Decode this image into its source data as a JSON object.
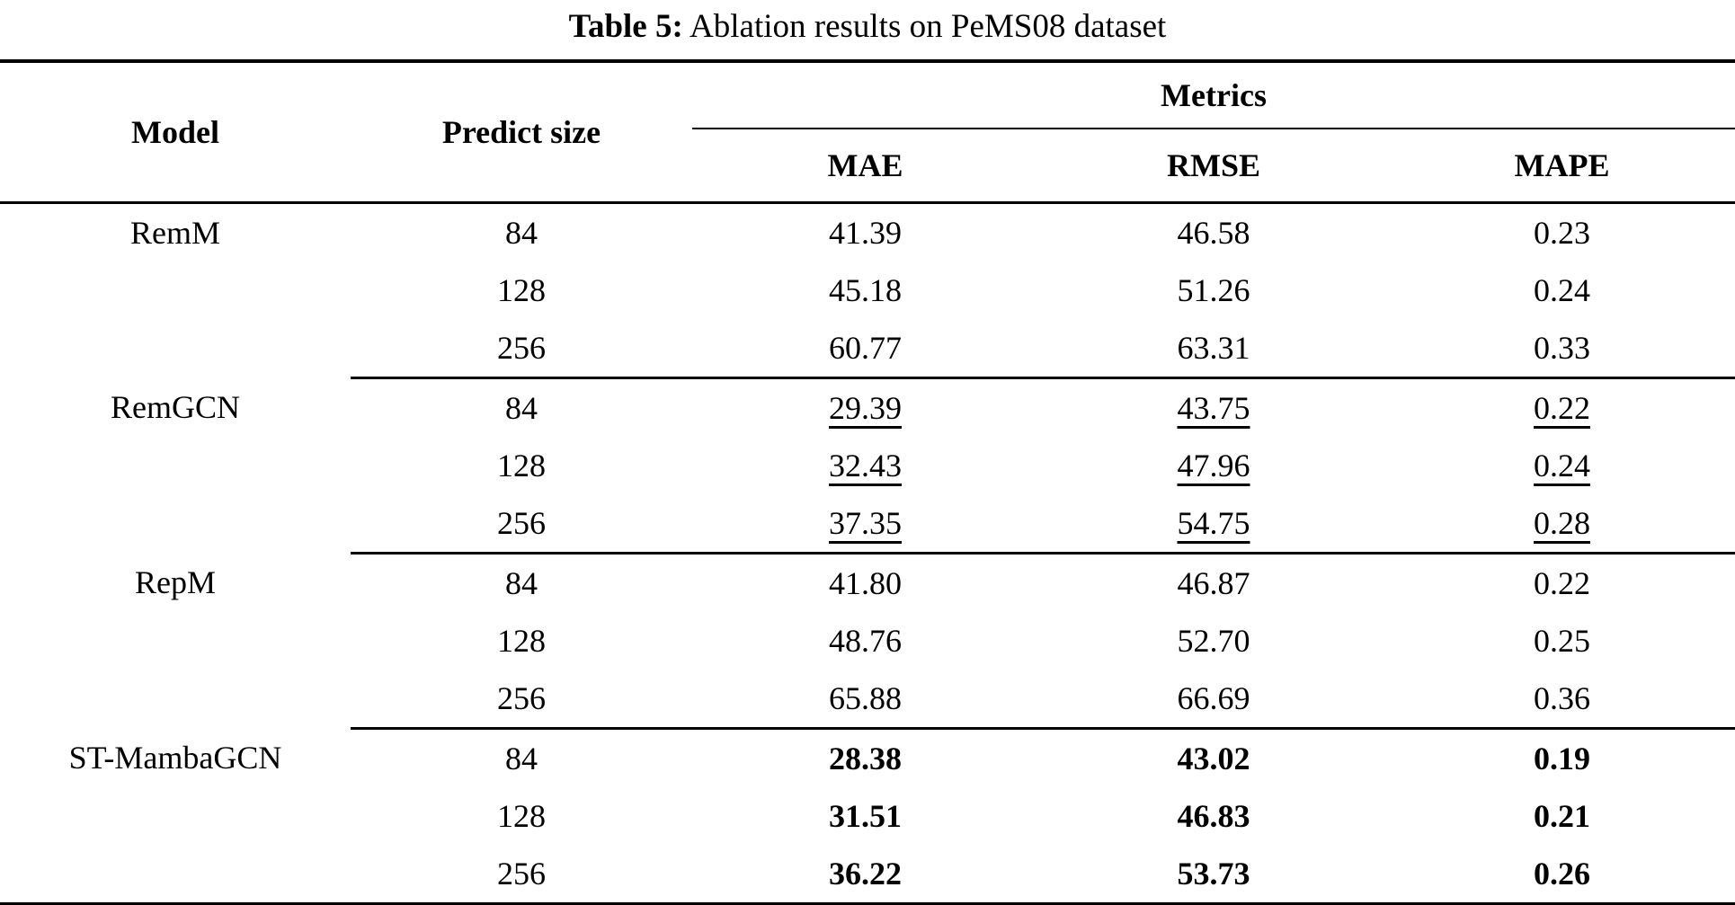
{
  "caption": {
    "label": "Table 5:",
    "text": "Ablation results on PeMS08 dataset"
  },
  "table": {
    "headers": {
      "model": "Model",
      "predict_size": "Predict size",
      "metrics_group": "Metrics",
      "metrics": [
        "MAE",
        "RMSE",
        "MAPE"
      ]
    },
    "groups": [
      {
        "model": "RemM",
        "value_style": "normal",
        "rows": [
          {
            "predict_size": "84",
            "mae": "41.39",
            "rmse": "46.58",
            "mape": "0.23"
          },
          {
            "predict_size": "128",
            "mae": "45.18",
            "rmse": "51.26",
            "mape": "0.24"
          },
          {
            "predict_size": "256",
            "mae": "60.77",
            "rmse": "63.31",
            "mape": "0.33"
          }
        ]
      },
      {
        "model": "RemGCN",
        "value_style": "underline",
        "rows": [
          {
            "predict_size": "84",
            "mae": "29.39",
            "rmse": "43.75",
            "mape": "0.22"
          },
          {
            "predict_size": "128",
            "mae": "32.43",
            "rmse": "47.96",
            "mape": "0.24"
          },
          {
            "predict_size": "256",
            "mae": "37.35",
            "rmse": "54.75",
            "mape": "0.28"
          }
        ]
      },
      {
        "model": "RepM",
        "value_style": "normal",
        "rows": [
          {
            "predict_size": "84",
            "mae": "41.80",
            "rmse": "46.87",
            "mape": "0.22"
          },
          {
            "predict_size": "128",
            "mae": "48.76",
            "rmse": "52.70",
            "mape": "0.25"
          },
          {
            "predict_size": "256",
            "mae": "65.88",
            "rmse": "66.69",
            "mape": "0.36"
          }
        ]
      },
      {
        "model": "ST-MambaGCN",
        "value_style": "bold",
        "rows": [
          {
            "predict_size": "84",
            "mae": "28.38",
            "rmse": "43.02",
            "mape": "0.19"
          },
          {
            "predict_size": "128",
            "mae": "31.51",
            "rmse": "46.83",
            "mape": "0.21"
          },
          {
            "predict_size": "256",
            "mae": "36.22",
            "rmse": "53.73",
            "mape": "0.26"
          }
        ]
      }
    ]
  },
  "colors": {
    "text": "#000000",
    "background": "#ffffff",
    "rule": "#000000"
  }
}
